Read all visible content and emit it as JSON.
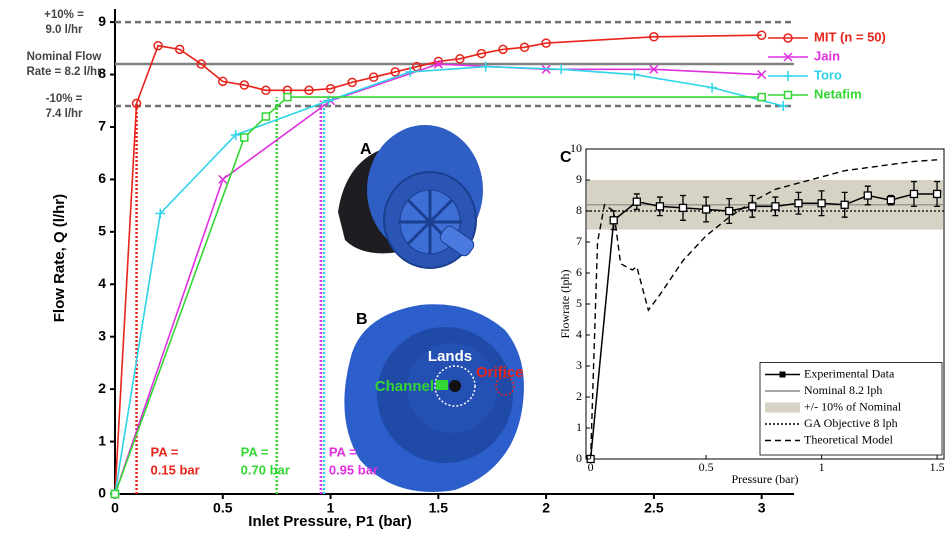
{
  "chart_data": [
    {
      "type": "line",
      "xlabel": "Inlet Pressure, P1 (bar)",
      "ylabel": "Flow Rate, Q (l/hr)",
      "xlim": [
        0,
        3.15
      ],
      "ylim": [
        0,
        9.25
      ],
      "xticks": [
        0,
        0.5,
        1,
        1.5,
        2,
        2.5,
        3
      ],
      "yticks": [
        0,
        1,
        2,
        3,
        4,
        5,
        6,
        7,
        8,
        9
      ],
      "series": [
        {
          "name": "MIT (n = 50)",
          "color": "#e8231a",
          "marker": "circle",
          "x": [
            0,
            0.1,
            0.2,
            0.3,
            0.4,
            0.5,
            0.6,
            0.7,
            0.8,
            0.9,
            1.0,
            1.1,
            1.2,
            1.3,
            1.4,
            1.5,
            1.6,
            1.7,
            1.8,
            1.9,
            2.0,
            2.5,
            3.0
          ],
          "values": [
            0,
            7.45,
            8.55,
            8.48,
            8.2,
            7.87,
            7.8,
            7.7,
            7.7,
            7.7,
            7.73,
            7.85,
            7.95,
            8.05,
            8.15,
            8.25,
            8.3,
            8.4,
            8.48,
            8.52,
            8.6,
            8.72,
            8.75
          ]
        },
        {
          "name": "Jain",
          "color": "#e030e0",
          "marker": "x",
          "x": [
            0,
            0.5,
            1,
            1.5,
            2,
            2.5,
            3
          ],
          "values": [
            0,
            6.0,
            7.5,
            8.2,
            8.1,
            8.1,
            8.0
          ]
        },
        {
          "name": "Toro",
          "color": "#2ed4e8",
          "marker": "plus",
          "x": [
            0,
            0.21,
            0.56,
            0.99,
            1.37,
            1.72,
            2.07,
            2.41,
            2.77,
            3.1
          ],
          "values": [
            0,
            5.35,
            6.85,
            7.5,
            8.05,
            8.15,
            8.1,
            8.0,
            7.75,
            7.4
          ]
        },
        {
          "name": "Netafim",
          "color": "#33d633",
          "marker": "square",
          "x": [
            0,
            0.6,
            0.7,
            0.8,
            3.0
          ],
          "values": [
            0,
            6.8,
            7.2,
            7.57,
            7.57
          ]
        }
      ],
      "reference_lines": [
        {
          "label": [
            "+10% =",
            "9.0 l/hr"
          ],
          "value": 9.0,
          "style": "dashed",
          "color": "#707070"
        },
        {
          "label": [
            "Nominal Flow",
            "Rate = 8.2 l/hr"
          ],
          "value": 8.2,
          "style": "solid",
          "color": "#808080"
        },
        {
          "label": [
            "-10% =",
            "7.4 l/hr"
          ],
          "value": 7.4,
          "style": "dashed",
          "color": "#707070"
        }
      ],
      "annotations": [
        {
          "x": 0.1,
          "y": 7.45,
          "color": "#e8231a",
          "label": [
            "PA =",
            "0.15 bar"
          ]
        },
        {
          "x": 0.75,
          "y": 7.57,
          "color": "#33d633",
          "label": [
            "PA =",
            "0.70 bar"
          ]
        },
        {
          "x": 0.955,
          "y": 7.5,
          "color": "#e030e0",
          "label": [
            "PA =",
            "0.95 bar"
          ]
        },
        {
          "x": 0.97,
          "y": 7.5,
          "color": "#2ed4e8"
        }
      ]
    },
    {
      "type": "line",
      "xlabel": "Pressure (bar)",
      "ylabel": "Flowrate (lph)",
      "xlim": [
        -0.02,
        1.53
      ],
      "ylim": [
        0,
        10
      ],
      "xticks": [
        0,
        0.5,
        1,
        1.5
      ],
      "yticks": [
        0,
        1,
        2,
        3,
        4,
        5,
        6,
        7,
        8,
        9,
        10
      ],
      "legend": "lower right",
      "series": [
        {
          "name": "Experimental Data",
          "kind": "errorbar",
          "color": "#000000",
          "x": [
            0,
            0.1,
            0.2,
            0.3,
            0.4,
            0.5,
            0.6,
            0.7,
            0.8,
            0.9,
            1.0,
            1.1,
            1.2,
            1.3,
            1.4,
            1.5
          ],
          "values": [
            0,
            7.7,
            8.3,
            8.15,
            8.1,
            8.05,
            8.0,
            8.15,
            8.15,
            8.25,
            8.25,
            8.2,
            8.5,
            8.35,
            8.55,
            8.55
          ],
          "errors": [
            0,
            0.3,
            0.25,
            0.3,
            0.4,
            0.4,
            0.4,
            0.35,
            0.3,
            0.35,
            0.4,
            0.4,
            0.3,
            0.15,
            0.4,
            0.4
          ]
        },
        {
          "name": "Nominal 8.2 lph",
          "kind": "hline",
          "value": 8.2,
          "style": "solid",
          "color": "#888888"
        },
        {
          "name": "+/- 10% of Nominal",
          "kind": "band",
          "lower": 7.4,
          "upper": 9.0,
          "color": "#d6d2c4"
        },
        {
          "name": "GA Objective 8 lph",
          "kind": "hline",
          "value": 8,
          "style": "dotted",
          "color": "#000000"
        },
        {
          "name": "Theoretical Model",
          "kind": "line",
          "style": "dashed",
          "color": "#000000",
          "x": [
            0,
            0.03,
            0.06,
            0.1,
            0.13,
            0.18,
            0.2,
            0.25,
            0.3,
            0.4,
            0.5,
            0.6,
            0.7,
            0.8,
            0.9,
            1.0,
            1.1,
            1.2,
            1.3,
            1.4,
            1.5
          ],
          "values": [
            0,
            7.0,
            8.2,
            8.0,
            6.3,
            6.1,
            6.2,
            4.8,
            5.3,
            6.4,
            7.2,
            7.8,
            8.3,
            8.7,
            8.9,
            9.1,
            9.3,
            9.4,
            9.5,
            9.6,
            9.65
          ]
        }
      ]
    }
  ],
  "figure": {
    "panels": [
      "A",
      "B",
      "C"
    ],
    "photo_labels": {
      "lands": "Lands",
      "channel": "Channel",
      "orifice": "Orifice"
    }
  }
}
